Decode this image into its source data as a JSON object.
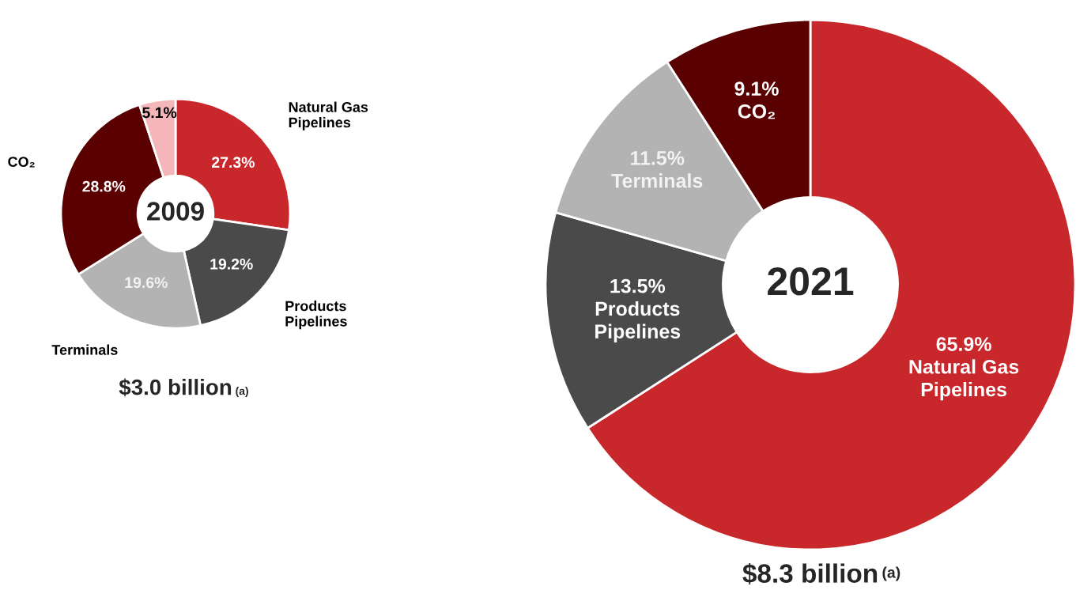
{
  "chart_data": [
    {
      "type": "donut",
      "title": "2009",
      "subtitle": "$3.0 billion",
      "annotations": [
        "(a)"
      ],
      "categories": [
        "Natural Gas Pipelines",
        "Products Pipelines",
        "Terminals",
        "CO₂",
        null
      ],
      "values": [
        27.3,
        19.2,
        19.6,
        28.8,
        5.1
      ],
      "value_labels": [
        "27.3%",
        "19.2%",
        "19.6%",
        "28.8%",
        "5.1%"
      ],
      "colors": [
        "#c8282c",
        "#4a4a4a",
        "#b3b3b3",
        "#5a0000",
        "#f4b6b8"
      ]
    },
    {
      "type": "donut",
      "title": "2021",
      "subtitle": "$8.3 billion",
      "annotations": [
        "(a)"
      ],
      "categories": [
        "Natural Gas Pipelines",
        "Products Pipelines",
        "Terminals",
        "CO₂"
      ],
      "values": [
        65.9,
        13.5,
        11.5,
        9.1
      ],
      "value_labels": [
        "65.9%",
        "13.5%",
        "11.5%",
        "9.1%"
      ],
      "colors": [
        "#c8282c",
        "#4a4a4a",
        "#b3b3b3",
        "#5a0000"
      ]
    }
  ]
}
